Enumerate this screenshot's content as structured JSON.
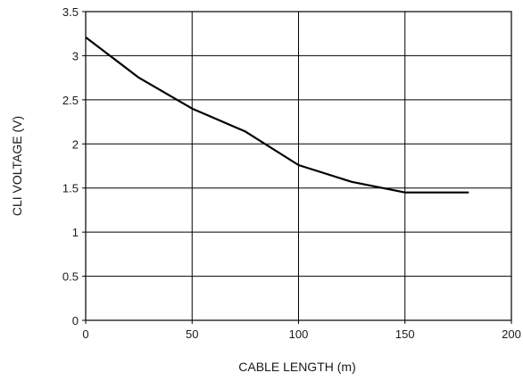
{
  "chart_data": {
    "type": "line",
    "title": "",
    "xlabel": "CABLE LENGTH (m)",
    "ylabel": "CLI  VOLTAGE (V)",
    "xlim": [
      0,
      200
    ],
    "ylim": [
      0,
      3.5
    ],
    "xticks": [
      0,
      50,
      100,
      150,
      200
    ],
    "xtick_labels": [
      "0",
      "50",
      "100",
      "150",
      "200"
    ],
    "yticks": [
      0,
      0.5,
      1,
      1.5,
      2,
      2.5,
      3,
      3.5
    ],
    "ytick_labels": [
      "0",
      "0.5",
      "1",
      "1.5",
      "2",
      "2.5",
      "3",
      "3.5"
    ],
    "grid": true,
    "line_color": "#000000",
    "series": [
      {
        "x": [
          0,
          25,
          50,
          75,
          100,
          125,
          150,
          180
        ],
        "y": [
          3.21,
          2.75,
          2.4,
          2.14,
          1.76,
          1.57,
          1.45,
          1.45
        ]
      }
    ]
  }
}
